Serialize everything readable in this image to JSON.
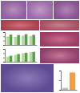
{
  "chart_data": [
    {
      "type": "bar",
      "categories": [
        null,
        null,
        null,
        null
      ],
      "series": [
        {
          "color": "#b5d99c",
          "values": [
            100,
            95,
            110,
            105
          ]
        },
        {
          "color": "#5a9e4b",
          "values": [
            120,
            115,
            125,
            118
          ]
        }
      ],
      "ylim": [
        0,
        150
      ],
      "yticks": [
        0,
        50,
        100,
        150
      ],
      "tick_labels": false
    },
    {
      "type": "bar",
      "categories": [
        null,
        null,
        null,
        null
      ],
      "series": [
        {
          "color": "#b5d99c",
          "values": [
            60,
            80,
            100,
            110
          ]
        },
        {
          "color": "#5a9e4b",
          "values": [
            70,
            90,
            105,
            115
          ]
        }
      ],
      "ylim": [
        0,
        150
      ],
      "yticks": [
        0,
        50,
        100,
        150
      ],
      "tick_labels": false
    },
    {
      "type": "bar",
      "categories": [
        null,
        null
      ],
      "values": [
        10,
        90
      ],
      "colors": [
        "#bbbbbb",
        "#f0a040"
      ],
      "ylim": [
        0,
        100
      ],
      "yticks": [
        0,
        50,
        100
      ],
      "tick_labels": false
    }
  ]
}
